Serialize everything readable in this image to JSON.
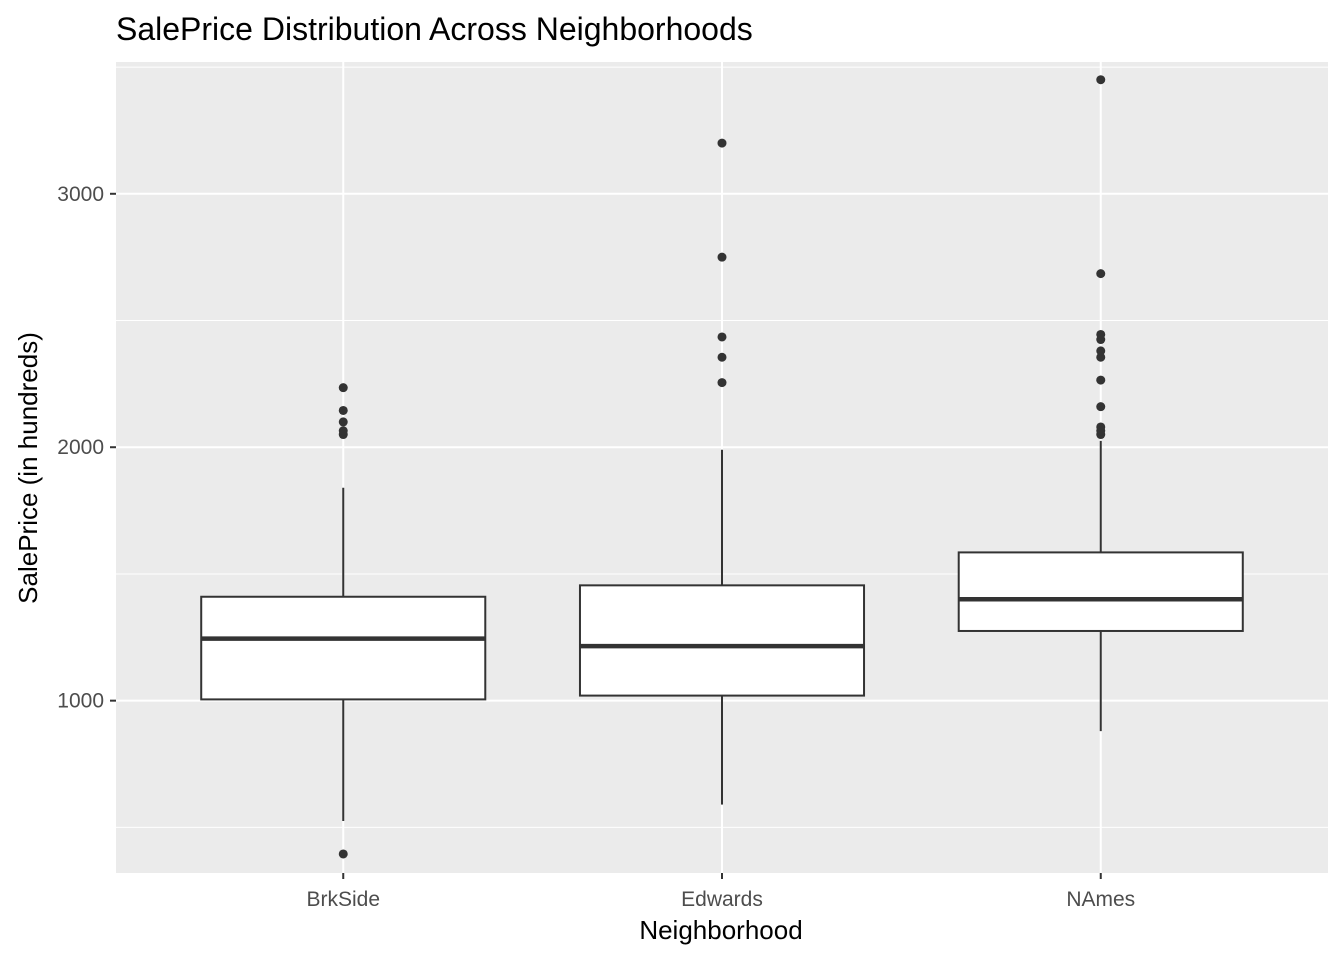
{
  "chart_data": {
    "type": "boxplot",
    "title": "SalePrice Distribution Across Neighborhoods",
    "xlabel": "Neighborhood",
    "ylabel": "SalePrice (in hundreds)",
    "ylim": [
      320,
      3520
    ],
    "yticks": [
      1000,
      2000,
      3000
    ],
    "categories": [
      "BrkSide",
      "Edwards",
      "NAmes"
    ],
    "boxes": [
      {
        "category": "BrkSide",
        "lower_whisker": 525,
        "q1": 1005,
        "median": 1245,
        "q3": 1410,
        "upper_whisker": 1840,
        "outliers": [
          395,
          2050,
          2065,
          2100,
          2145,
          2235
        ]
      },
      {
        "category": "Edwards",
        "lower_whisker": 590,
        "q1": 1020,
        "median": 1215,
        "q3": 1455,
        "upper_whisker": 1990,
        "outliers": [
          2255,
          2355,
          2435,
          2750,
          3200
        ]
      },
      {
        "category": "NAmes",
        "lower_whisker": 880,
        "q1": 1275,
        "median": 1400,
        "q3": 1585,
        "upper_whisker": 2025,
        "outliers": [
          2050,
          2065,
          2080,
          2160,
          2265,
          2355,
          2380,
          2425,
          2445,
          2685,
          3450
        ]
      }
    ],
    "colors": {
      "panel": "#ebebeb",
      "grid": "#ffffff",
      "box_fill": "#ffffff",
      "box_line": "#333333",
      "outlier": "#333333"
    },
    "grid": true,
    "legend": "none"
  }
}
